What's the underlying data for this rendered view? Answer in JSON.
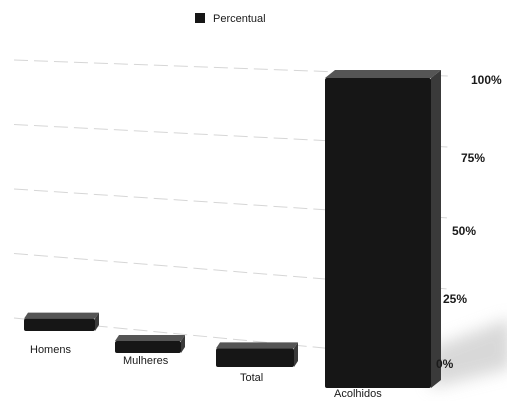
{
  "chart_data": {
    "type": "bar",
    "categories": [
      "Homens",
      "Mulheres",
      "Total",
      "Acolhidos"
    ],
    "series": [
      {
        "name": "Percentual",
        "values": [
          4,
          2,
          6,
          100
        ]
      }
    ],
    "y_ticks": [
      "0%",
      "25%",
      "50%",
      "75%",
      "100%"
    ],
    "ylim": [
      0,
      100
    ],
    "legend_position": "top-center",
    "grid": true,
    "style": "3d",
    "bar_color": "#161616",
    "grid_color": "#d6d6d6",
    "shadow_color": "#cfcfcf"
  }
}
